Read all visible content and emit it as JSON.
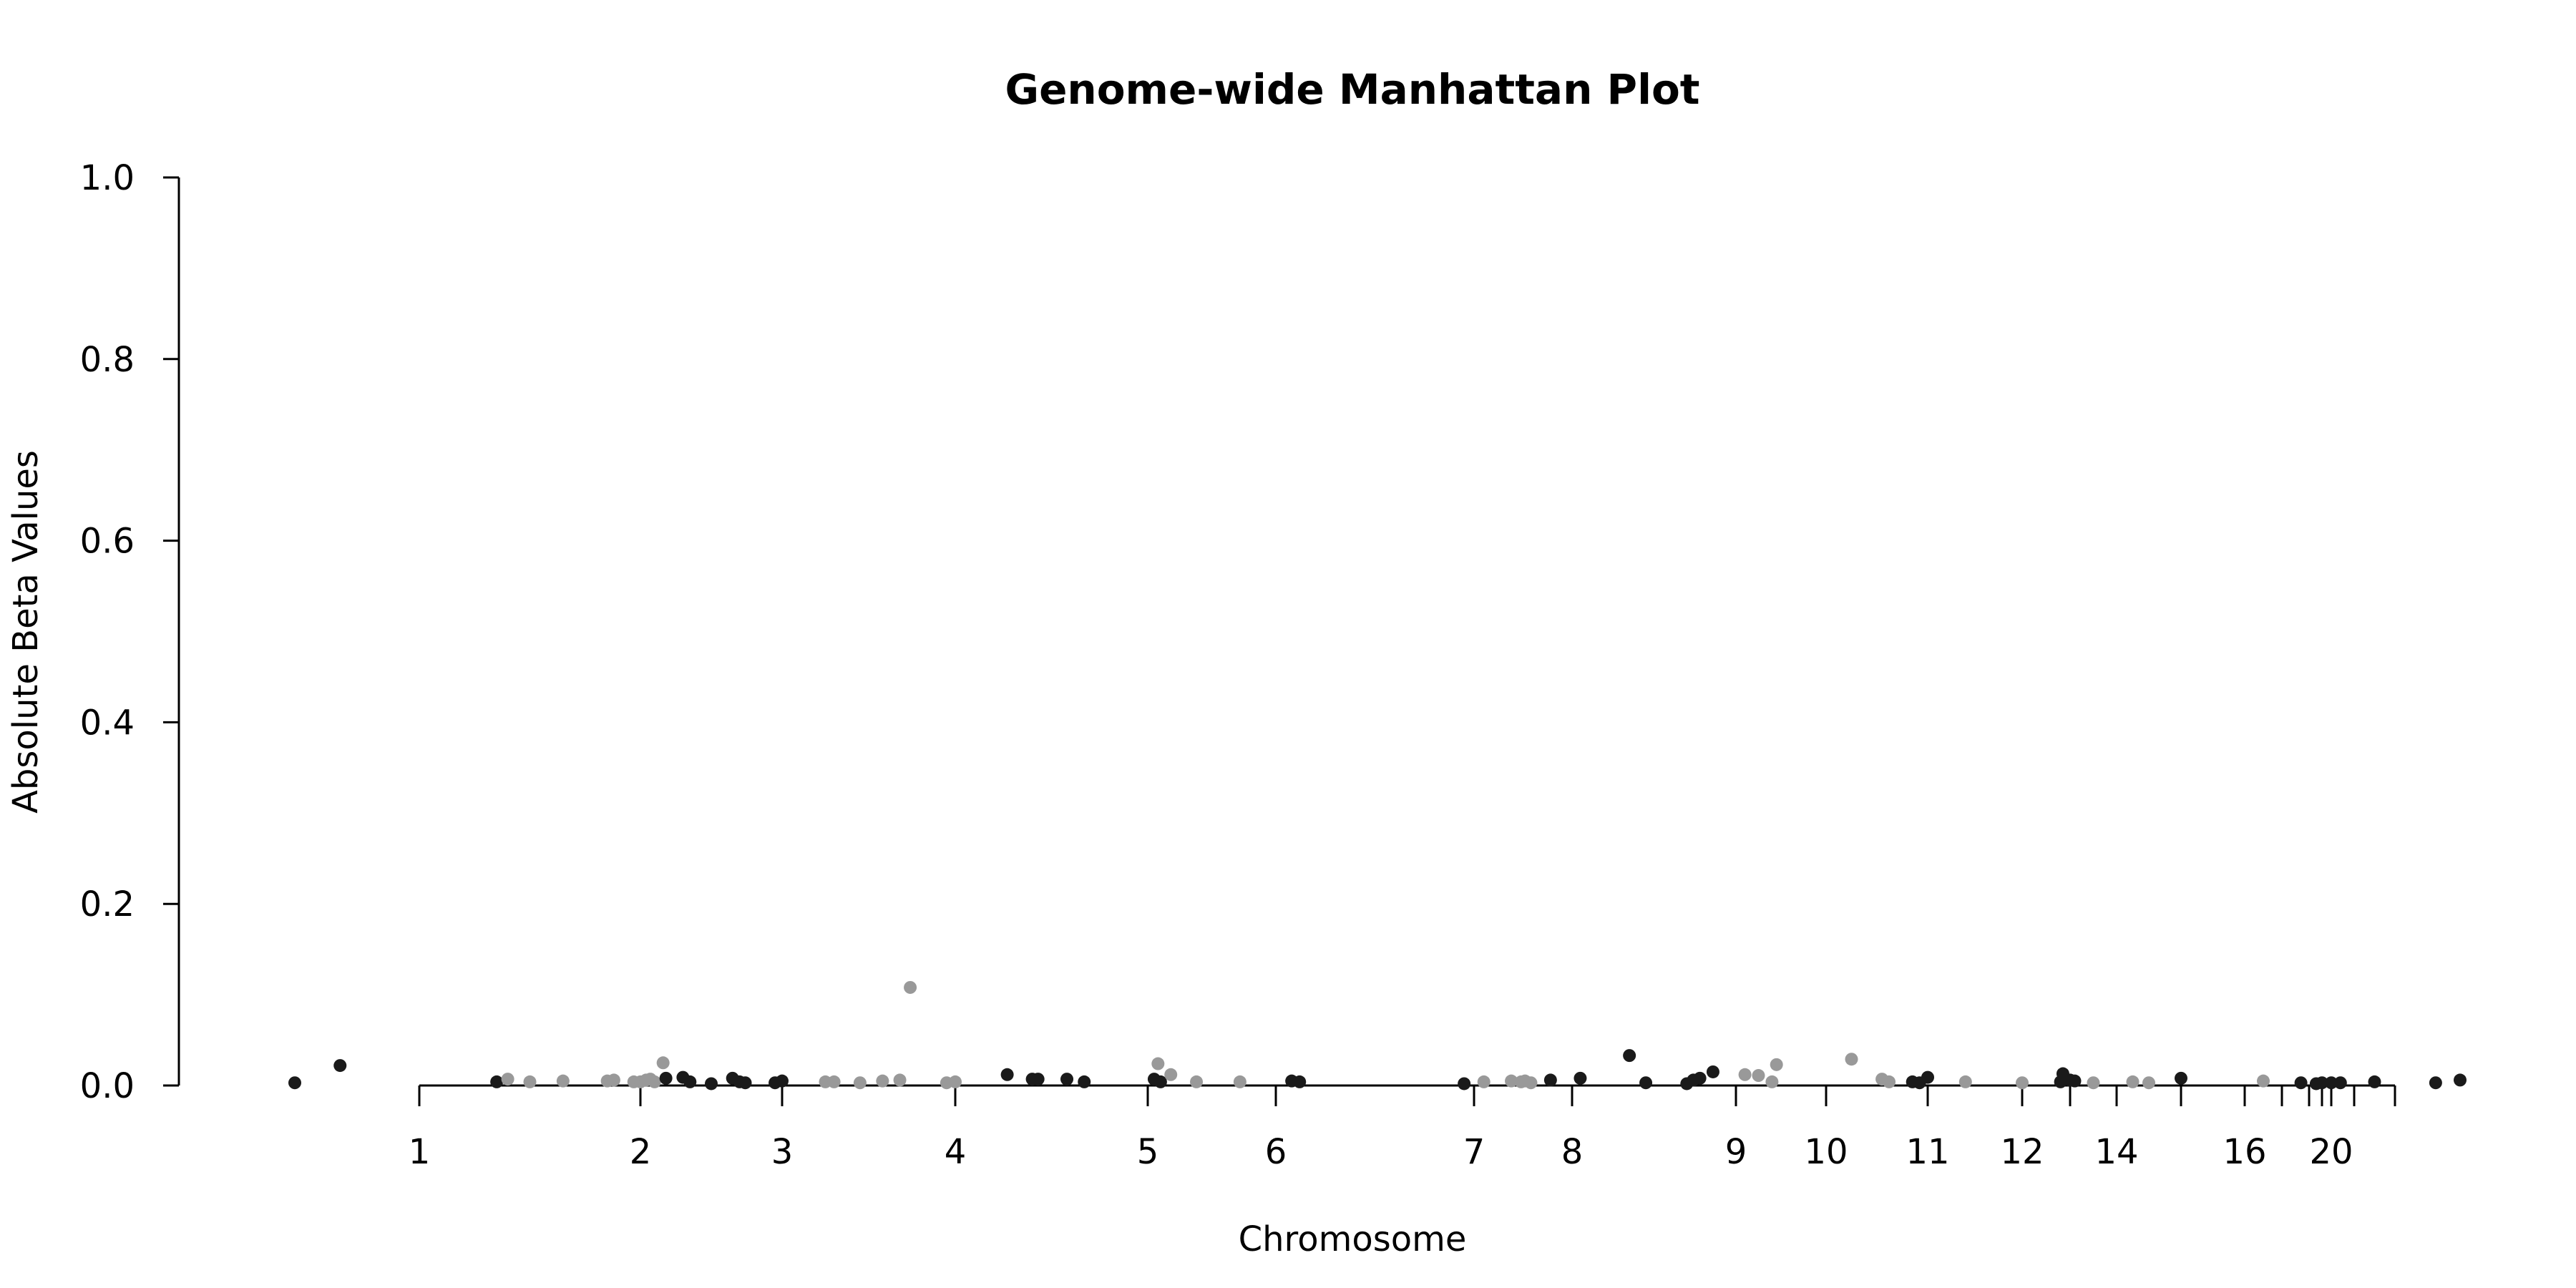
{
  "chart_data": {
    "type": "scatter",
    "title": "Genome-wide Manhattan Plot",
    "xlabel": "Chromosome",
    "ylabel": "Absolute Beta Values",
    "ylim": [
      0,
      1.0
    ],
    "y_ticks": [
      "0.0",
      "0.2",
      "0.4",
      "0.6",
      "0.8",
      "1.0"
    ],
    "y_tick_values": [
      0,
      0.2,
      0.4,
      0.6,
      0.8,
      1.0
    ],
    "x_tick_positions": [
      1,
      2,
      3,
      4,
      5,
      6,
      7,
      8,
      9,
      10,
      11,
      12,
      13,
      14,
      15,
      16,
      17,
      18,
      19,
      20,
      21,
      22
    ],
    "x_tick_labels": [
      "1",
      "2",
      "3",
      "4",
      "5",
      "6",
      "7",
      "8",
      "9",
      "10",
      "11",
      "12",
      "",
      "14",
      "",
      "16",
      "",
      "",
      "",
      "20",
      "",
      ""
    ],
    "grid": false,
    "legend": "none",
    "colors": {
      "odd_chromosome": "#1a1a1a",
      "even_chromosome": "#999999",
      "axis": "#000000"
    },
    "series": [
      {
        "values": [
          {
            "x": 0.45,
            "y": 0.003,
            "c": "dark"
          },
          {
            "x": 0.65,
            "y": 0.022,
            "c": "dark"
          },
          {
            "x": 1.35,
            "y": 0.004,
            "c": "dark"
          },
          {
            "x": 1.4,
            "y": 0.007,
            "c": "light"
          },
          {
            "x": 1.5,
            "y": 0.004,
            "c": "light"
          },
          {
            "x": 1.65,
            "y": 0.005,
            "c": "light"
          },
          {
            "x": 1.85,
            "y": 0.005,
            "c": "light"
          },
          {
            "x": 1.88,
            "y": 0.006,
            "c": "light"
          },
          {
            "x": 1.97,
            "y": 0.004,
            "c": "light"
          },
          {
            "x": 2.0,
            "y": 0.004,
            "c": "light"
          },
          {
            "x": 2.04,
            "y": 0.006,
            "c": "light"
          },
          {
            "x": 2.07,
            "y": 0.007,
            "c": "light"
          },
          {
            "x": 2.1,
            "y": 0.004,
            "c": "light"
          },
          {
            "x": 2.16,
            "y": 0.025,
            "c": "light"
          },
          {
            "x": 2.18,
            "y": 0.008,
            "c": "dark"
          },
          {
            "x": 2.3,
            "y": 0.009,
            "c": "dark"
          },
          {
            "x": 2.35,
            "y": 0.004,
            "c": "dark"
          },
          {
            "x": 2.5,
            "y": 0.002,
            "c": "dark"
          },
          {
            "x": 2.65,
            "y": 0.008,
            "c": "dark"
          },
          {
            "x": 2.7,
            "y": 0.004,
            "c": "dark"
          },
          {
            "x": 2.74,
            "y": 0.003,
            "c": "dark"
          },
          {
            "x": 2.95,
            "y": 0.003,
            "c": "dark"
          },
          {
            "x": 3.0,
            "y": 0.005,
            "c": "dark"
          },
          {
            "x": 3.25,
            "y": 0.004,
            "c": "light"
          },
          {
            "x": 3.3,
            "y": 0.004,
            "c": "light"
          },
          {
            "x": 3.45,
            "y": 0.003,
            "c": "light"
          },
          {
            "x": 3.58,
            "y": 0.005,
            "c": "light"
          },
          {
            "x": 3.68,
            "y": 0.006,
            "c": "light"
          },
          {
            "x": 3.74,
            "y": 0.108,
            "c": "light"
          },
          {
            "x": 3.95,
            "y": 0.003,
            "c": "light"
          },
          {
            "x": 4.0,
            "y": 0.004,
            "c": "light"
          },
          {
            "x": 4.27,
            "y": 0.012,
            "c": "dark"
          },
          {
            "x": 4.4,
            "y": 0.007,
            "c": "dark"
          },
          {
            "x": 4.43,
            "y": 0.007,
            "c": "dark"
          },
          {
            "x": 4.58,
            "y": 0.007,
            "c": "dark"
          },
          {
            "x": 4.67,
            "y": 0.004,
            "c": "dark"
          },
          {
            "x": 5.05,
            "y": 0.007,
            "c": "dark"
          },
          {
            "x": 5.1,
            "y": 0.004,
            "c": "dark"
          },
          {
            "x": 5.08,
            "y": 0.024,
            "c": "light"
          },
          {
            "x": 5.18,
            "y": 0.012,
            "c": "light"
          },
          {
            "x": 5.38,
            "y": 0.004,
            "c": "light"
          },
          {
            "x": 5.72,
            "y": 0.004,
            "c": "light"
          },
          {
            "x": 6.08,
            "y": 0.005,
            "c": "dark"
          },
          {
            "x": 6.12,
            "y": 0.004,
            "c": "dark"
          },
          {
            "x": 6.95,
            "y": 0.002,
            "c": "dark"
          },
          {
            "x": 7.1,
            "y": 0.004,
            "c": "light"
          },
          {
            "x": 7.38,
            "y": 0.005,
            "c": "light"
          },
          {
            "x": 7.48,
            "y": 0.004,
            "c": "light"
          },
          {
            "x": 7.52,
            "y": 0.005,
            "c": "light"
          },
          {
            "x": 7.58,
            "y": 0.003,
            "c": "light"
          },
          {
            "x": 7.78,
            "y": 0.006,
            "c": "dark"
          },
          {
            "x": 8.05,
            "y": 0.008,
            "c": "dark"
          },
          {
            "x": 8.35,
            "y": 0.033,
            "c": "dark"
          },
          {
            "x": 8.45,
            "y": 0.003,
            "c": "dark"
          },
          {
            "x": 8.7,
            "y": 0.002,
            "c": "dark"
          },
          {
            "x": 8.74,
            "y": 0.006,
            "c": "dark"
          },
          {
            "x": 8.78,
            "y": 0.008,
            "c": "dark"
          },
          {
            "x": 8.86,
            "y": 0.015,
            "c": "dark"
          },
          {
            "x": 9.1,
            "y": 0.012,
            "c": "light"
          },
          {
            "x": 9.25,
            "y": 0.011,
            "c": "light"
          },
          {
            "x": 9.4,
            "y": 0.004,
            "c": "light"
          },
          {
            "x": 9.45,
            "y": 0.023,
            "c": "light"
          },
          {
            "x": 10.25,
            "y": 0.029,
            "c": "light"
          },
          {
            "x": 10.55,
            "y": 0.007,
            "c": "light"
          },
          {
            "x": 10.62,
            "y": 0.004,
            "c": "light"
          },
          {
            "x": 10.85,
            "y": 0.004,
            "c": "dark"
          },
          {
            "x": 10.92,
            "y": 0.003,
            "c": "dark"
          },
          {
            "x": 11.0,
            "y": 0.009,
            "c": "dark"
          },
          {
            "x": 11.4,
            "y": 0.004,
            "c": "light"
          },
          {
            "x": 12.0,
            "y": 0.003,
            "c": "light"
          },
          {
            "x": 12.8,
            "y": 0.004,
            "c": "dark"
          },
          {
            "x": 12.85,
            "y": 0.013,
            "c": "dark"
          },
          {
            "x": 13.0,
            "y": 0.006,
            "c": "dark"
          },
          {
            "x": 13.1,
            "y": 0.005,
            "c": "dark"
          },
          {
            "x": 13.5,
            "y": 0.003,
            "c": "light"
          },
          {
            "x": 14.25,
            "y": 0.004,
            "c": "light"
          },
          {
            "x": 14.5,
            "y": 0.003,
            "c": "light"
          },
          {
            "x": 15.0,
            "y": 0.008,
            "c": "dark"
          },
          {
            "x": 16.5,
            "y": 0.005,
            "c": "light"
          },
          {
            "x": 17.7,
            "y": 0.003,
            "c": "dark"
          },
          {
            "x": 18.55,
            "y": 0.002,
            "c": "dark"
          },
          {
            "x": 19.0,
            "y": 0.003,
            "c": "dark"
          },
          {
            "x": 20.0,
            "y": 0.003,
            "c": "dark"
          },
          {
            "x": 20.4,
            "y": 0.003,
            "c": "dark"
          },
          {
            "x": 21.5,
            "y": 0.004,
            "c": "dark"
          },
          {
            "x": 23.0,
            "y": 0.003,
            "c": "dark"
          },
          {
            "x": 23.6,
            "y": 0.006,
            "c": "dark"
          }
        ]
      }
    ]
  }
}
